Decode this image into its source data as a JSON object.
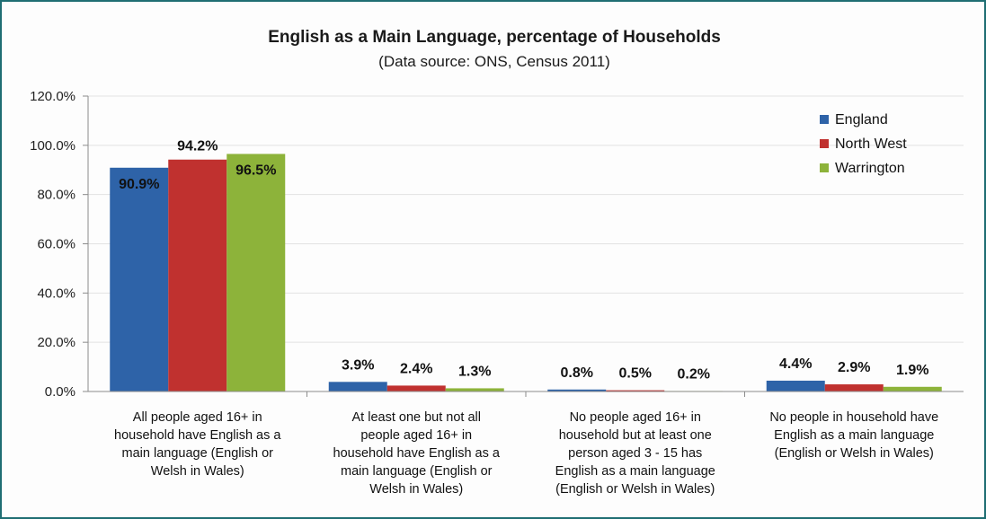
{
  "chart_data": {
    "type": "bar",
    "title": "English as a Main Language, percentage of Households",
    "subtitle": "(Data source: ONS, Census 2011)",
    "xlabel": "",
    "ylabel": "",
    "ylim": [
      0,
      120
    ],
    "yticks": [
      "0.0%",
      "20.0%",
      "40.0%",
      "60.0%",
      "80.0%",
      "100.0%",
      "120.0%"
    ],
    "grid": true,
    "legend_position": "top-right",
    "categories": [
      [
        "All people aged 16+ in",
        "household have English as a",
        "main language (English or",
        "Welsh in Wales)"
      ],
      [
        "At least one but not all",
        "people aged 16+ in",
        "household have English as a",
        "main language (English or",
        "Welsh in Wales)"
      ],
      [
        "No people aged 16+ in",
        "household but at least one",
        "person aged 3 - 15 has",
        "English as a main language",
        "(English or Welsh in Wales)"
      ],
      [
        "No people in household have",
        "English as a main language",
        "(English or Welsh in Wales)"
      ]
    ],
    "series": [
      {
        "name": "England",
        "color": "#2e63a8",
        "values": [
          90.9,
          3.9,
          0.8,
          4.4
        ],
        "labels": [
          "90.9%",
          "3.9%",
          "0.8%",
          "4.4%"
        ]
      },
      {
        "name": "North West",
        "color": "#c0312f",
        "values": [
          94.2,
          2.4,
          0.5,
          2.9
        ],
        "labels": [
          "94.2%",
          "2.4%",
          "0.5%",
          "2.9%"
        ]
      },
      {
        "name": "Warrington",
        "color": "#8db33a",
        "values": [
          96.5,
          1.3,
          0.2,
          1.9
        ],
        "labels": [
          "96.5%",
          "1.3%",
          "0.2%",
          "1.9%"
        ]
      }
    ]
  }
}
